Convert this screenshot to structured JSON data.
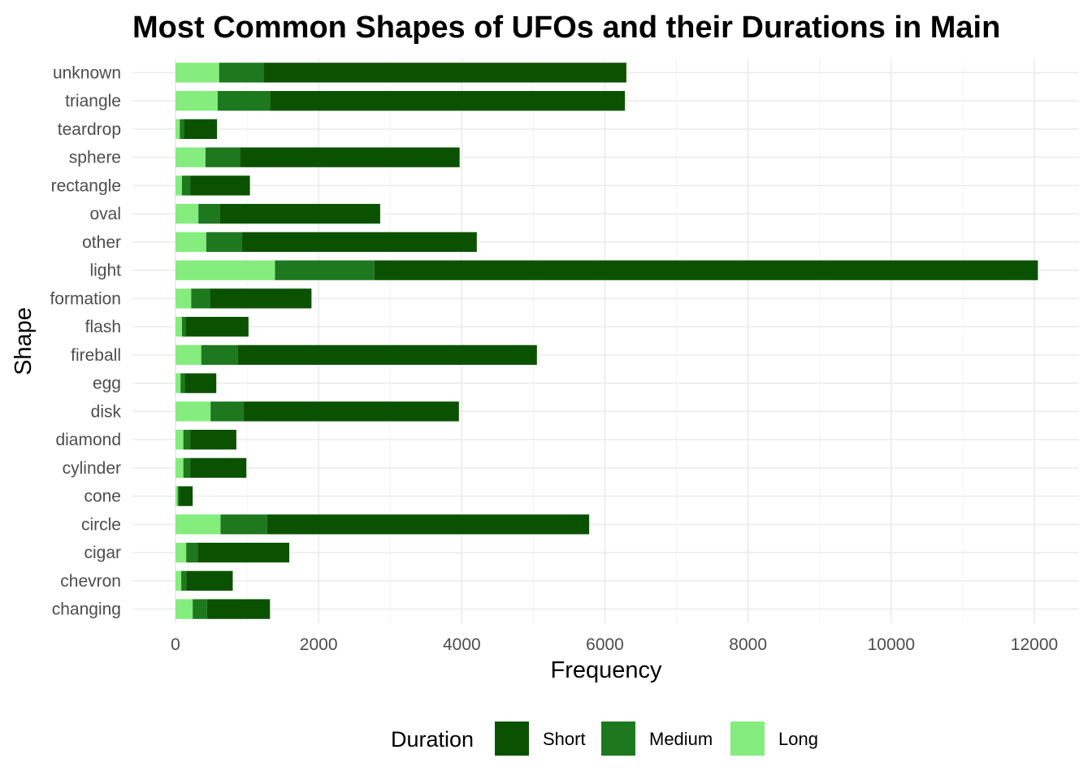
{
  "chart_data": {
    "type": "bar",
    "orientation": "horizontal",
    "stacked": true,
    "title": "Most Common Shapes of UFOs and their Durations in Main",
    "xlabel": "Frequency",
    "ylabel": "Shape",
    "xlim": [
      0,
      12600
    ],
    "x_ticks": [
      0,
      2000,
      4000,
      6000,
      8000,
      10000,
      12000
    ],
    "grid": true,
    "legend": {
      "title": "Duration",
      "placement": "bottom",
      "entries": [
        {
          "name": "Short",
          "color": "#0b5200"
        },
        {
          "name": "Medium",
          "color": "#1e781e"
        },
        {
          "name": "Long",
          "color": "#85ec7e"
        }
      ]
    },
    "categories": [
      "changing",
      "chevron",
      "cigar",
      "circle",
      "cone",
      "cylinder",
      "diamond",
      "disk",
      "egg",
      "fireball",
      "flash",
      "formation",
      "light",
      "other",
      "oval",
      "rectangle",
      "sphere",
      "teardrop",
      "triangle",
      "unknown"
    ],
    "series": [
      {
        "name": "Long",
        "color": "#85ec7e",
        "values": [
          240,
          80,
          150,
          630,
          30,
          110,
          110,
          490,
          70,
          360,
          90,
          220,
          1390,
          430,
          320,
          90,
          420,
          60,
          590,
          610
        ]
      },
      {
        "name": "Medium",
        "color": "#1e781e",
        "values": [
          200,
          70,
          160,
          650,
          20,
          100,
          100,
          460,
          60,
          510,
          50,
          260,
          1390,
          500,
          300,
          120,
          480,
          60,
          730,
          620
        ]
      },
      {
        "name": "Short",
        "color": "#0b5200",
        "values": [
          880,
          650,
          1280,
          4500,
          190,
          780,
          640,
          3010,
          440,
          4180,
          880,
          1420,
          9270,
          3280,
          2240,
          830,
          3070,
          460,
          4960,
          5070
        ]
      }
    ]
  }
}
